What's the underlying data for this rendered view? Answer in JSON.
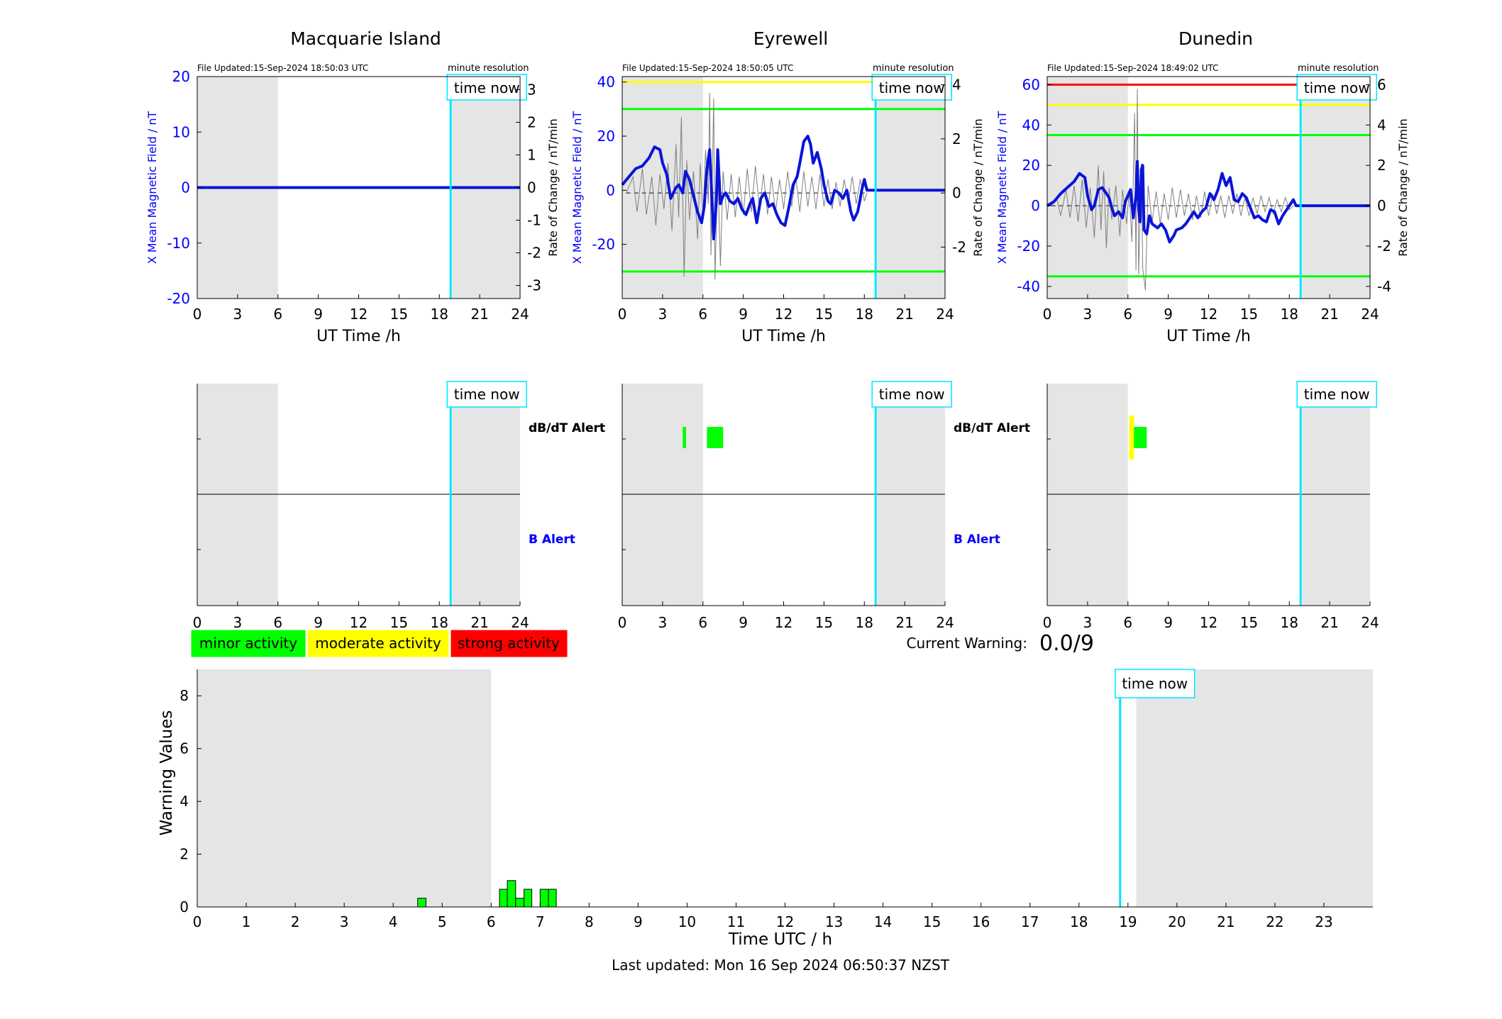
{
  "colors": {
    "blue": "#0000ff",
    "darkblue": "#0a14d8",
    "cyan": "#00e5ff",
    "shade": "#e5e5e5",
    "green": "#00ff00",
    "yellow": "#ffff00",
    "red": "#ff0000",
    "grey": "#7f7f7f",
    "black": "#000000"
  },
  "labels": {
    "time_now": "time now",
    "minute_resolution": "minute resolution",
    "ut_time": "UT Time /h",
    "left_axis": "X Mean Magnetic Field / nT",
    "right_axis": "Rate of Change / nT/min",
    "dbdt_alert": "dB/dT Alert",
    "b_alert": "B Alert",
    "current_warning_label": "Current Warning:",
    "current_warning_value": "0.0/9",
    "warning_values": "Warning Values",
    "time_utc": "Time UTC / h",
    "last_updated": "Last updated: Mon 16 Sep 2024 06:50:37 NZST"
  },
  "legend": [
    {
      "label": "minor activity",
      "color": "#00ff00"
    },
    {
      "label": "moderate activity",
      "color": "#ffff00"
    },
    {
      "label": "strong activity",
      "color": "#ff0000"
    }
  ],
  "chart_data": [
    {
      "type": "line",
      "station": "Macquarie Island",
      "file_updated": "File Updated:15-Sep-2024 18:50:03 UTC",
      "xlim": [
        0,
        24
      ],
      "xticks": [
        0,
        3,
        6,
        9,
        12,
        15,
        18,
        21,
        24
      ],
      "ylim": [
        -20,
        20
      ],
      "yticks": [
        -20,
        -10,
        0,
        10,
        20
      ],
      "y2lim": [
        -3.4,
        3.4
      ],
      "y2ticks": [
        -3,
        -2,
        -1,
        0,
        1,
        2,
        3
      ],
      "shade": [
        [
          0,
          6
        ],
        [
          18.95,
          24
        ]
      ],
      "time_now": 18.84,
      "hlines": [],
      "field": [
        [
          0,
          0
        ],
        [
          24,
          0
        ]
      ],
      "rate": [],
      "alerts_dbdt": [],
      "alerts_b": []
    },
    {
      "type": "line",
      "station": "Eyrewell",
      "file_updated": "File Updated:15-Sep-2024 18:50:05 UTC",
      "xlim": [
        0,
        24
      ],
      "xticks": [
        0,
        3,
        6,
        9,
        12,
        15,
        18,
        21,
        24
      ],
      "ylim": [
        -40,
        42
      ],
      "yticks": [
        -20,
        0,
        20,
        40
      ],
      "y2lim": [
        -3.9,
        4.3
      ],
      "y2ticks": [
        -2,
        0,
        2,
        4
      ],
      "shade": [
        [
          0,
          6
        ],
        [
          18.95,
          24
        ]
      ],
      "time_now": 18.84,
      "hlines": [
        {
          "y": 40,
          "color": "#ffff00"
        },
        {
          "y": 30,
          "color": "#00ff00"
        },
        {
          "y": -30,
          "color": "#00ff00"
        }
      ],
      "field": [
        [
          0,
          2
        ],
        [
          0.5,
          5
        ],
        [
          1,
          8
        ],
        [
          1.5,
          9
        ],
        [
          2,
          12
        ],
        [
          2.4,
          16
        ],
        [
          2.8,
          15
        ],
        [
          3,
          10
        ],
        [
          3.3,
          6
        ],
        [
          3.6,
          -3
        ],
        [
          4,
          1
        ],
        [
          4.2,
          2
        ],
        [
          4.5,
          -1
        ],
        [
          4.7,
          7
        ],
        [
          5,
          4
        ],
        [
          5.3,
          -2
        ],
        [
          5.6,
          -8
        ],
        [
          5.9,
          -12
        ],
        [
          6.1,
          -6
        ],
        [
          6.3,
          8
        ],
        [
          6.5,
          15
        ],
        [
          6.6,
          5
        ],
        [
          6.8,
          -18
        ],
        [
          7,
          -4
        ],
        [
          7.1,
          15
        ],
        [
          7.3,
          -5
        ],
        [
          7.5,
          -2
        ],
        [
          7.7,
          -1
        ],
        [
          8,
          -4
        ],
        [
          8.3,
          -5
        ],
        [
          8.6,
          -3
        ],
        [
          8.9,
          -7
        ],
        [
          9.2,
          -9
        ],
        [
          9.5,
          -5
        ],
        [
          9.7,
          -3
        ],
        [
          10,
          -12
        ],
        [
          10.3,
          -3
        ],
        [
          10.6,
          -1
        ],
        [
          10.9,
          -6
        ],
        [
          11.2,
          -5
        ],
        [
          11.5,
          -9
        ],
        [
          11.8,
          -12
        ],
        [
          12.1,
          -13
        ],
        [
          12.4,
          -6
        ],
        [
          12.7,
          2
        ],
        [
          13,
          5
        ],
        [
          13.2,
          10
        ],
        [
          13.5,
          18
        ],
        [
          13.8,
          20
        ],
        [
          14,
          17
        ],
        [
          14.2,
          10
        ],
        [
          14.5,
          14
        ],
        [
          14.8,
          8
        ],
        [
          15,
          2
        ],
        [
          15.3,
          -4
        ],
        [
          15.5,
          -5
        ],
        [
          15.8,
          0
        ],
        [
          16.1,
          -1
        ],
        [
          16.4,
          -3
        ],
        [
          16.7,
          0
        ],
        [
          17,
          -8
        ],
        [
          17.2,
          -11
        ],
        [
          17.5,
          -8
        ],
        [
          17.7,
          -3
        ],
        [
          17.8,
          0
        ],
        [
          18,
          4
        ],
        [
          18.1,
          2
        ],
        [
          18.2,
          0
        ],
        [
          24,
          0
        ]
      ],
      "rate": [
        [
          0.3,
          0
        ],
        [
          0.8,
          0.6
        ],
        [
          1.1,
          -0.7
        ],
        [
          1.5,
          0.9
        ],
        [
          1.8,
          -0.8
        ],
        [
          2.2,
          0.6
        ],
        [
          2.5,
          -1.2
        ],
        [
          2.8,
          0.7
        ],
        [
          3.1,
          -0.6
        ],
        [
          3.4,
          1.1
        ],
        [
          3.7,
          -1.4
        ],
        [
          4,
          1.8
        ],
        [
          4.2,
          -0.9
        ],
        [
          4.4,
          2.8
        ],
        [
          4.6,
          -3.1
        ],
        [
          4.8,
          1.2
        ],
        [
          5,
          -1
        ],
        [
          5.3,
          0.8
        ],
        [
          5.6,
          -1.7
        ],
        [
          5.8,
          1.1
        ],
        [
          6,
          -0.8
        ],
        [
          6.2,
          1.6
        ],
        [
          6.4,
          -0.4
        ],
        [
          6.5,
          3.7
        ],
        [
          6.6,
          -2.3
        ],
        [
          6.8,
          3.5
        ],
        [
          6.9,
          -3.2
        ],
        [
          7.1,
          0.9
        ],
        [
          7.3,
          -2.7
        ],
        [
          7.5,
          0.8
        ],
        [
          7.8,
          -1
        ],
        [
          8.1,
          0.7
        ],
        [
          8.4,
          -0.9
        ],
        [
          8.7,
          0.6
        ],
        [
          9,
          -0.8
        ],
        [
          9.3,
          0.9
        ],
        [
          9.6,
          -0.7
        ],
        [
          9.9,
          1
        ],
        [
          10.2,
          -0.6
        ],
        [
          10.5,
          0.7
        ],
        [
          10.8,
          -0.8
        ],
        [
          11.1,
          0.6
        ],
        [
          11.4,
          -0.7
        ],
        [
          11.7,
          0.5
        ],
        [
          12,
          -0.6
        ],
        [
          12.3,
          0.8
        ],
        [
          12.6,
          -0.5
        ],
        [
          12.9,
          0.6
        ],
        [
          13.2,
          -0.7
        ],
        [
          13.5,
          0.8
        ],
        [
          13.8,
          -0.5
        ],
        [
          14.1,
          0.6
        ],
        [
          14.4,
          -0.6
        ],
        [
          14.7,
          0.7
        ],
        [
          15,
          -0.5
        ],
        [
          15.3,
          0.5
        ],
        [
          15.6,
          -0.6
        ],
        [
          15.9,
          0.4
        ],
        [
          16.2,
          -0.5
        ],
        [
          16.5,
          0.5
        ],
        [
          16.8,
          -0.4
        ],
        [
          17.1,
          0.6
        ],
        [
          17.4,
          -0.4
        ],
        [
          17.7,
          0.5
        ],
        [
          18,
          -0.3
        ],
        [
          18.2,
          0
        ]
      ],
      "alerts_dbdt": [
        {
          "x0": 4.5,
          "x1": 4.75,
          "color": "#00ff00"
        },
        {
          "x0": 6.3,
          "x1": 7.5,
          "color": "#00ff00"
        }
      ],
      "alerts_b": []
    },
    {
      "type": "line",
      "station": "Dunedin",
      "file_updated": "File Updated:15-Sep-2024 18:49:02 UTC",
      "xlim": [
        0,
        24
      ],
      "xticks": [
        0,
        3,
        6,
        9,
        12,
        15,
        18,
        21,
        24
      ],
      "ylim": [
        -46,
        64
      ],
      "yticks": [
        -40,
        -20,
        0,
        20,
        40,
        60
      ],
      "y2lim": [
        -4.6,
        6.4
      ],
      "y2ticks": [
        -4,
        -2,
        0,
        2,
        4,
        6
      ],
      "shade": [
        [
          0,
          6
        ],
        [
          18.95,
          24
        ]
      ],
      "time_now": 18.84,
      "hlines": [
        {
          "y": 60,
          "color": "#ff0000"
        },
        {
          "y": 50,
          "color": "#ffff00"
        },
        {
          "y": 35,
          "color": "#00ff00"
        },
        {
          "y": -35,
          "color": "#00ff00"
        }
      ],
      "field": [
        [
          0,
          0
        ],
        [
          0.5,
          2
        ],
        [
          1,
          6
        ],
        [
          1.5,
          9
        ],
        [
          2,
          12
        ],
        [
          2.4,
          16
        ],
        [
          2.8,
          14
        ],
        [
          3,
          5
        ],
        [
          3.3,
          -2
        ],
        [
          3.5,
          0
        ],
        [
          3.8,
          8
        ],
        [
          4.1,
          9
        ],
        [
          4.4,
          6
        ],
        [
          4.6,
          4
        ],
        [
          4.8,
          -1
        ],
        [
          5,
          -5
        ],
        [
          5.3,
          -3
        ],
        [
          5.6,
          -6
        ],
        [
          5.8,
          2
        ],
        [
          6.2,
          8
        ],
        [
          6.4,
          -6
        ],
        [
          6.6,
          5
        ],
        [
          6.7,
          22
        ],
        [
          6.8,
          -2
        ],
        [
          6.9,
          -8
        ],
        [
          7,
          18
        ],
        [
          7.1,
          20
        ],
        [
          7.2,
          -12
        ],
        [
          7.4,
          -14
        ],
        [
          7.6,
          -5
        ],
        [
          7.8,
          -9
        ],
        [
          8.2,
          -11
        ],
        [
          8.5,
          -9
        ],
        [
          8.8,
          -12
        ],
        [
          9.1,
          -18
        ],
        [
          9.4,
          -15
        ],
        [
          9.6,
          -12
        ],
        [
          10,
          -11
        ],
        [
          10.3,
          -9
        ],
        [
          10.6,
          -6
        ],
        [
          10.9,
          -3
        ],
        [
          11.2,
          -6
        ],
        [
          11.5,
          -3
        ],
        [
          11.8,
          -1
        ],
        [
          12.1,
          6
        ],
        [
          12.4,
          3
        ],
        [
          12.7,
          8
        ],
        [
          13,
          16
        ],
        [
          13.3,
          10
        ],
        [
          13.6,
          14
        ],
        [
          13.9,
          3
        ],
        [
          14.2,
          2
        ],
        [
          14.5,
          6
        ],
        [
          14.8,
          4
        ],
        [
          15.1,
          -1
        ],
        [
          15.4,
          -6
        ],
        [
          15.7,
          -5
        ],
        [
          16,
          -7
        ],
        [
          16.3,
          -8
        ],
        [
          16.6,
          -2
        ],
        [
          16.9,
          -3
        ],
        [
          17.2,
          -9
        ],
        [
          17.5,
          -5
        ],
        [
          17.8,
          -2
        ],
        [
          18.1,
          1
        ],
        [
          18.3,
          3
        ],
        [
          18.5,
          0
        ],
        [
          24,
          0
        ]
      ],
      "rate": [
        [
          0.3,
          0
        ],
        [
          0.7,
          0.4
        ],
        [
          1,
          -0.5
        ],
        [
          1.4,
          0.8
        ],
        [
          1.7,
          -0.6
        ],
        [
          2,
          1
        ],
        [
          2.3,
          -0.8
        ],
        [
          2.6,
          1.3
        ],
        [
          2.9,
          -1.1
        ],
        [
          3.2,
          0.9
        ],
        [
          3.5,
          -1.6
        ],
        [
          3.8,
          2
        ],
        [
          4,
          -1.2
        ],
        [
          4.2,
          1.7
        ],
        [
          4.4,
          -2.1
        ],
        [
          4.6,
          0.9
        ],
        [
          4.8,
          -0.7
        ],
        [
          5.1,
          1
        ],
        [
          5.4,
          -1.5
        ],
        [
          5.6,
          0.8
        ],
        [
          5.9,
          -0.9
        ],
        [
          6.1,
          0.7
        ],
        [
          6.3,
          -1.8
        ],
        [
          6.5,
          4.6
        ],
        [
          6.6,
          -3.2
        ],
        [
          6.7,
          5.8
        ],
        [
          6.8,
          -3.4
        ],
        [
          7,
          2.1
        ],
        [
          7.1,
          -3.1
        ],
        [
          7.3,
          -4.2
        ],
        [
          7.5,
          1
        ],
        [
          7.8,
          -0.8
        ],
        [
          8.1,
          0.7
        ],
        [
          8.4,
          -0.9
        ],
        [
          8.7,
          0.6
        ],
        [
          9,
          -0.7
        ],
        [
          9.3,
          0.9
        ],
        [
          9.6,
          -0.6
        ],
        [
          9.9,
          0.8
        ],
        [
          10.2,
          -0.5
        ],
        [
          10.5,
          0.6
        ],
        [
          10.8,
          -0.7
        ],
        [
          11.1,
          0.5
        ],
        [
          11.4,
          -0.6
        ],
        [
          11.7,
          0.7
        ],
        [
          12,
          -0.5
        ],
        [
          12.3,
          0.6
        ],
        [
          12.6,
          -0.4
        ],
        [
          12.9,
          0.5
        ],
        [
          13.2,
          -0.6
        ],
        [
          13.5,
          0.5
        ],
        [
          13.8,
          -0.4
        ],
        [
          14.1,
          0.6
        ],
        [
          14.4,
          -0.5
        ],
        [
          14.7,
          0.4
        ],
        [
          15,
          -0.5
        ],
        [
          15.3,
          0.4
        ],
        [
          15.6,
          -0.4
        ],
        [
          15.9,
          0.5
        ],
        [
          16.2,
          -0.3
        ],
        [
          16.5,
          0.4
        ],
        [
          16.8,
          -0.4
        ],
        [
          17.1,
          0.3
        ],
        [
          17.4,
          -0.3
        ],
        [
          17.7,
          0.4
        ],
        [
          18,
          -0.2
        ],
        [
          18.3,
          0
        ]
      ],
      "alerts_dbdt": [
        {
          "x0": 6.1,
          "x1": 6.45,
          "color": "#ffff00",
          "tall": true
        },
        {
          "x0": 6.45,
          "x1": 7.4,
          "color": "#00ff00"
        }
      ],
      "alerts_b": []
    },
    {
      "type": "bar",
      "title": "",
      "xlabel": "Time UTC / h",
      "ylabel": "Warning Values",
      "xlim": [
        0,
        24
      ],
      "xticks": [
        0,
        1,
        2,
        3,
        4,
        5,
        6,
        7,
        8,
        9,
        10,
        11,
        12,
        13,
        14,
        15,
        16,
        17,
        18,
        19,
        20,
        21,
        22,
        23
      ],
      "ylim": [
        0,
        9
      ],
      "yticks": [
        0,
        2,
        4,
        6,
        8
      ],
      "shade": [
        [
          0,
          6
        ],
        [
          19.17,
          24
        ]
      ],
      "time_now": 18.84,
      "bars": [
        {
          "x0": 4.5,
          "x1": 4.67,
          "value": 0.33
        },
        {
          "x0": 6.17,
          "x1": 6.33,
          "value": 0.67
        },
        {
          "x0": 6.33,
          "x1": 6.5,
          "value": 1.0
        },
        {
          "x0": 6.5,
          "x1": 6.67,
          "value": 0.33
        },
        {
          "x0": 6.67,
          "x1": 6.83,
          "value": 0.67
        },
        {
          "x0": 7.0,
          "x1": 7.17,
          "value": 0.67
        },
        {
          "x0": 7.17,
          "x1": 7.33,
          "value": 0.67
        }
      ]
    }
  ]
}
